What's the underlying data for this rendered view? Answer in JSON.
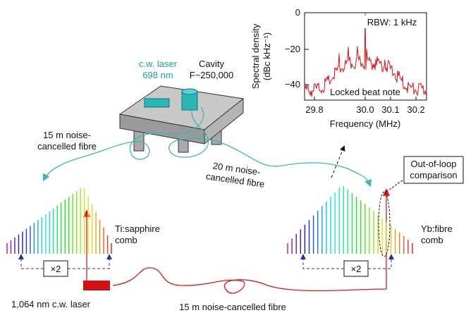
{
  "inset": {
    "rbw": "RBW: 1 kHz",
    "annotation": "Locked beat note",
    "y_label": [
      "Spectral density",
      "(dBc kHz⁻¹)"
    ],
    "x_label": "Frequency (MHz)",
    "y_ticks": [
      "0",
      "−20",
      "−40"
    ],
    "x_ticks": [
      "29.8",
      "30.0",
      "30.1",
      "30.2"
    ]
  },
  "labels": {
    "laser": [
      "c.w. laser",
      "698 nm"
    ],
    "cavity": [
      "Cavity",
      "F~250,000"
    ],
    "fibre_left": [
      "15 m noise-",
      "cancelled fibre"
    ],
    "fibre_mid": [
      "20 m noise-",
      "cancelled fibre"
    ],
    "out_of_loop": [
      "Out-of-loop",
      "comparison"
    ],
    "ti_comb": [
      "Ti:sapphire",
      "comb"
    ],
    "yb_comb": [
      "Yb:fibre",
      "comb"
    ],
    "doubler_left": "×2",
    "doubler_right": "×2",
    "ir_laser": "1,064 nm c.w. laser",
    "fibre_bottom": "15 m noise-cancelled fibre"
  }
}
